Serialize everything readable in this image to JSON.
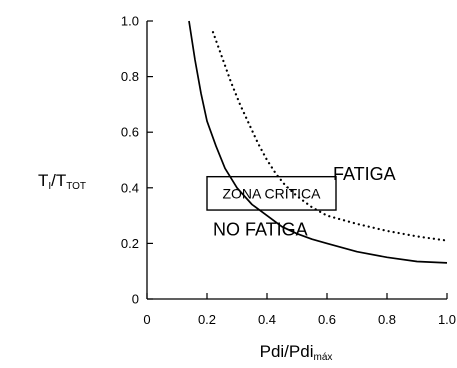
{
  "chart_data": {
    "type": "line",
    "xlim": [
      0,
      1.0
    ],
    "ylim": [
      0,
      1.0
    ],
    "x_ticks": [
      "0",
      "0.2",
      "0.4",
      "0.6",
      "0.8",
      "1.0"
    ],
    "y_ticks": [
      "0",
      "0.2",
      "0.4",
      "0.6",
      "0.8",
      "1.0"
    ],
    "xlabel": {
      "main": "Pdi/Pdi",
      "sub": "máx"
    },
    "ylabel": {
      "main": "T",
      "sub1": "I",
      "mid": "/T",
      "sub2": "TOT"
    },
    "grid": false,
    "series": [
      {
        "style": "solid",
        "x": [
          0.14,
          0.16,
          0.18,
          0.2,
          0.23,
          0.26,
          0.3,
          0.35,
          0.4,
          0.45,
          0.5,
          0.55,
          0.6,
          0.7,
          0.8,
          0.9,
          1.0
        ],
        "y": [
          1.0,
          0.86,
          0.74,
          0.64,
          0.55,
          0.47,
          0.4,
          0.34,
          0.3,
          0.26,
          0.235,
          0.215,
          0.2,
          0.17,
          0.15,
          0.135,
          0.13
        ]
      },
      {
        "style": "dotted",
        "x": [
          0.22,
          0.25,
          0.28,
          0.31,
          0.34,
          0.37,
          0.4,
          0.43,
          0.46,
          0.5,
          0.55,
          0.6,
          0.7,
          0.8,
          0.9,
          1.0
        ],
        "y": [
          0.96,
          0.87,
          0.78,
          0.7,
          0.63,
          0.56,
          0.5,
          0.45,
          0.41,
          0.37,
          0.33,
          0.3,
          0.27,
          0.245,
          0.225,
          0.21
        ]
      }
    ],
    "annotations": {
      "fatiga": "FATIGA",
      "no_fatiga": "NO FATIGA",
      "zona_critica": "ZONA CRÍTICA"
    },
    "annotation_values": {
      "fatiga": {
        "x": 0.62,
        "y": 0.45
      },
      "no_fatiga": {
        "x": 0.22,
        "y": 0.25
      },
      "zona_critica_box": {
        "x0": 0.2,
        "x1": 0.63,
        "y0": 0.32,
        "y1": 0.44
      }
    }
  }
}
